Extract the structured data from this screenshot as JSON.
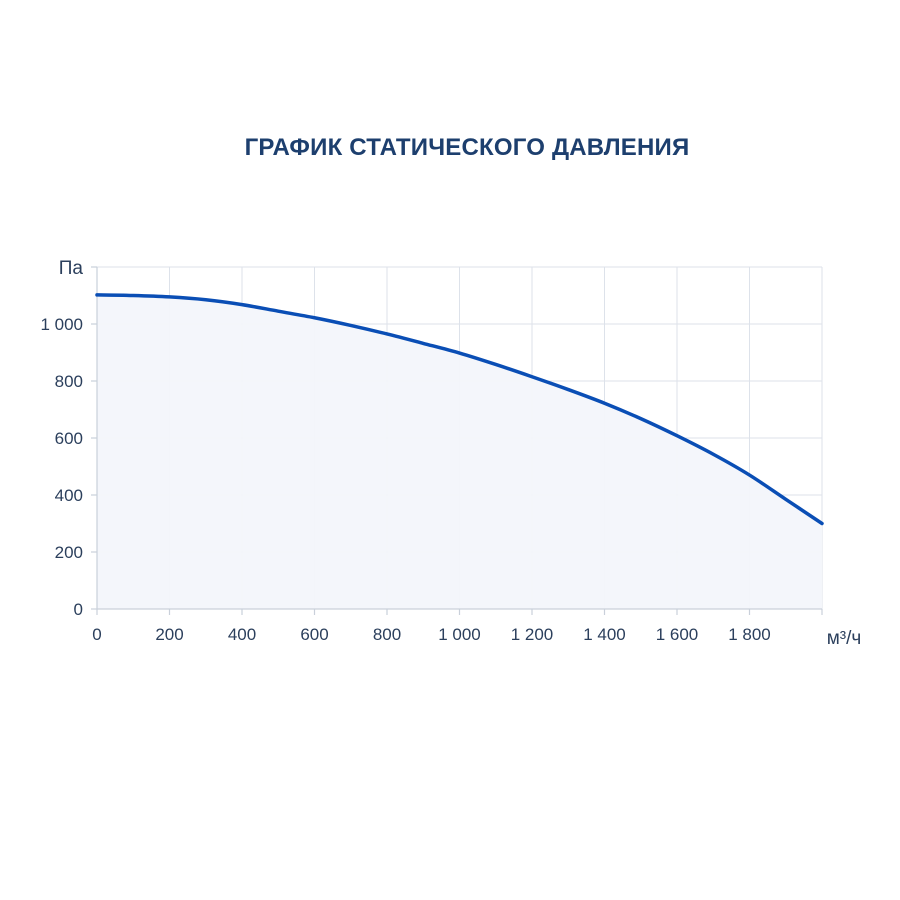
{
  "chart_data": {
    "type": "area",
    "title": "ГРАФИК СТАТИЧЕСКОГО ДАВЛЕНИЯ",
    "xlabel": "м³/ч",
    "ylabel": "Па",
    "xlim": [
      0,
      2000
    ],
    "ylim": [
      0,
      1200
    ],
    "x_ticks": [
      0,
      200,
      400,
      600,
      800,
      1000,
      1200,
      1400,
      1600,
      1800
    ],
    "x_tick_labels": [
      "0",
      "200",
      "400",
      "600",
      "800",
      "1 000",
      "1 200",
      "1 400",
      "1 600",
      "1 800"
    ],
    "y_ticks": [
      0,
      200,
      400,
      600,
      800,
      1000
    ],
    "y_tick_labels": [
      "0",
      "200",
      "400",
      "600",
      "800",
      "1 000"
    ],
    "grid": true,
    "series": [
      {
        "x": [
          0,
          100,
          200,
          300,
          400,
          500,
          600,
          700,
          800,
          900,
          1000,
          1100,
          1200,
          1300,
          1400,
          1500,
          1600,
          1700,
          1800,
          1900,
          2000
        ],
        "y": [
          1102,
          1100,
          1095,
          1085,
          1068,
          1045,
          1022,
          995,
          965,
          932,
          898,
          858,
          815,
          770,
          722,
          668,
          608,
          543,
          470,
          385,
          300
        ]
      }
    ],
    "colors": {
      "line": "#0a4eb5",
      "fill": "#f3f6fb",
      "grid": "#dde2ea",
      "axis": "#c9d0da",
      "text": "#2b3f5c"
    }
  }
}
